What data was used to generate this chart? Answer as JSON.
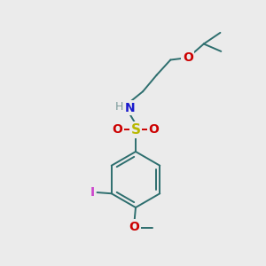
{
  "bg_color": "#ebebeb",
  "bond_color": "#2d6e6e",
  "atom_colors": {
    "N": "#1a1acc",
    "S": "#b8b800",
    "O": "#cc0000",
    "I": "#cc44cc",
    "H": "#7a9a9a"
  },
  "fig_width": 3.0,
  "fig_height": 3.0,
  "dpi": 100
}
